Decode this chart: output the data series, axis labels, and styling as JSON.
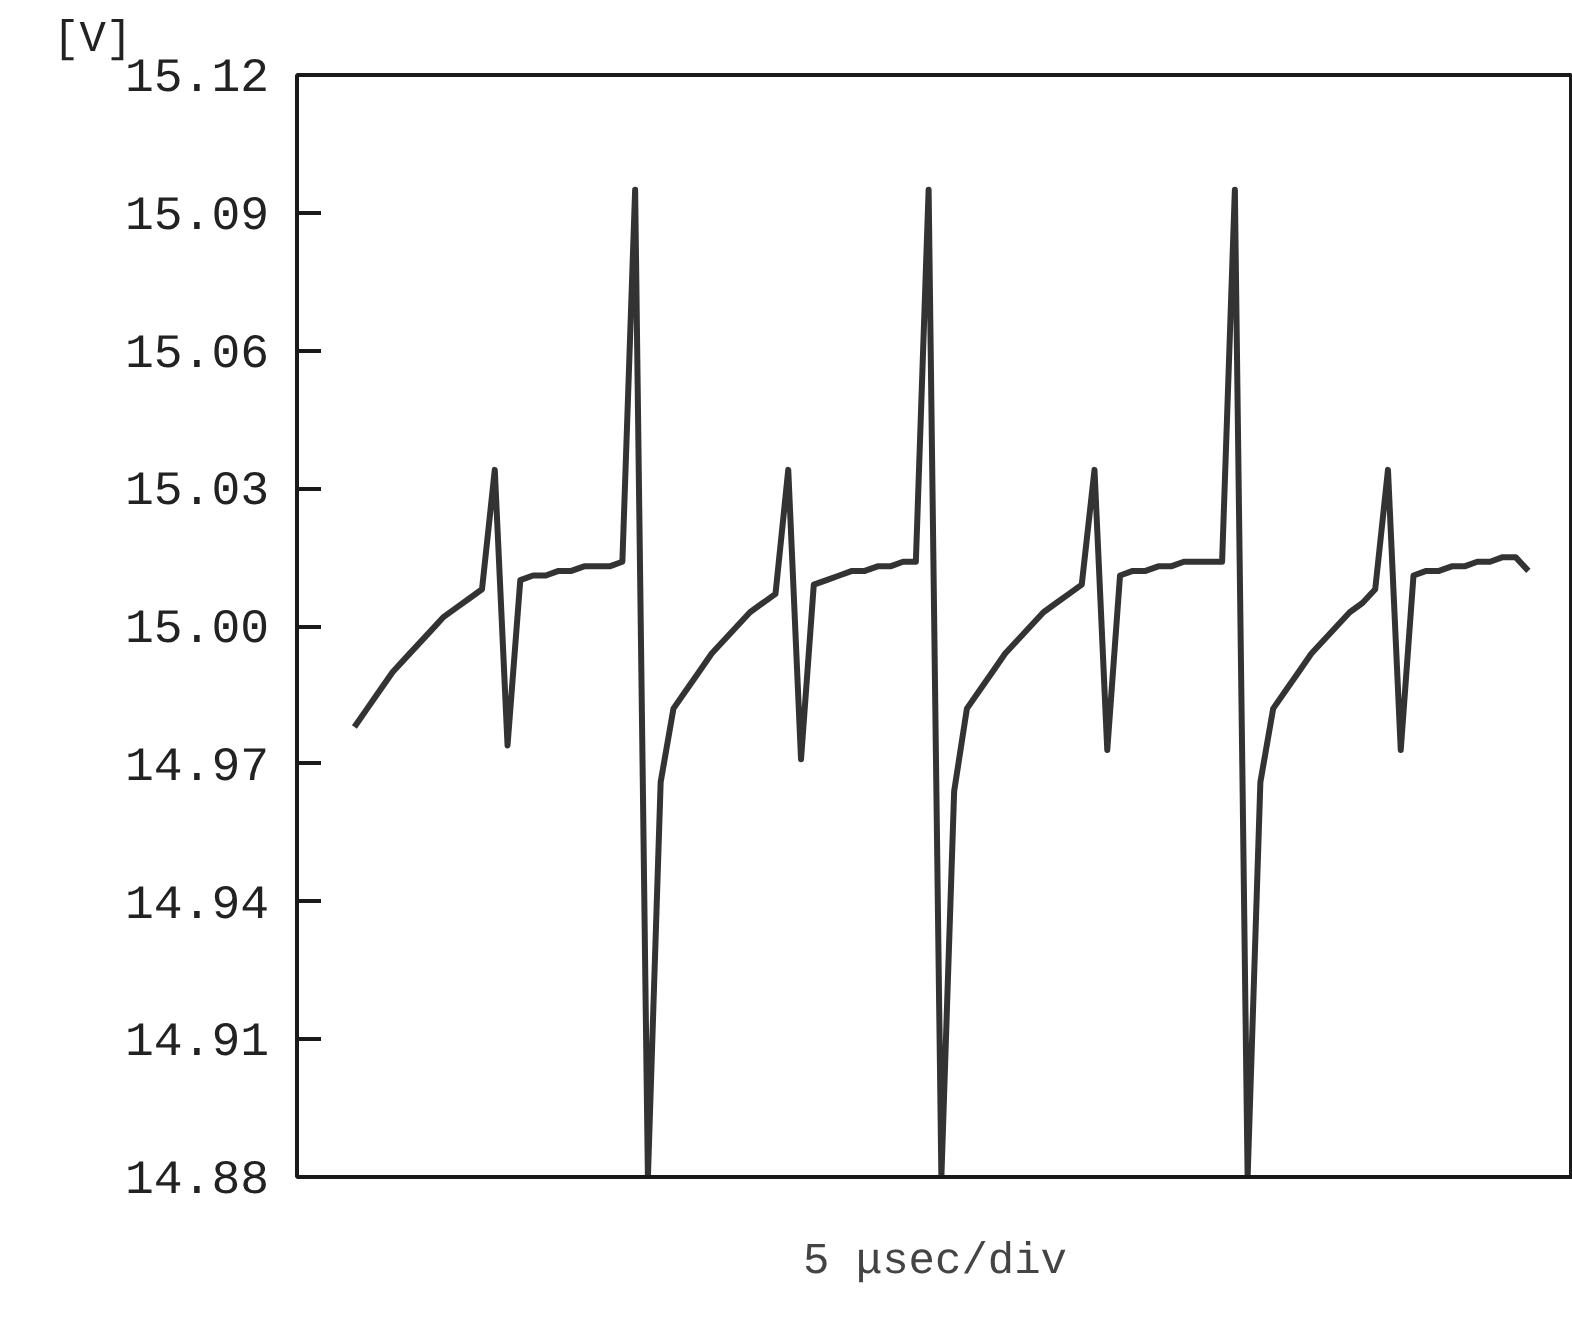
{
  "chart_data": {
    "type": "line",
    "ylabel": "[V]",
    "xlabel": "5 μsec/div",
    "categories": [
      null,
      null,
      null,
      null,
      null,
      null,
      null,
      null,
      null,
      null,
      null,
      null,
      null,
      null,
      null,
      null,
      null,
      null,
      null,
      null,
      null,
      null,
      null,
      null,
      null,
      null,
      null,
      null,
      null,
      null,
      null,
      null,
      null,
      null,
      null,
      null,
      null,
      null,
      null,
      null,
      null,
      null,
      null,
      null,
      null,
      null,
      null,
      null,
      null,
      null,
      null,
      null,
      null,
      null,
      null,
      null,
      null,
      null,
      null,
      null,
      null,
      null,
      null,
      null,
      null,
      null,
      null,
      null,
      null,
      null,
      null,
      null,
      null,
      null,
      null,
      null,
      null,
      null,
      null,
      null,
      null,
      null,
      null,
      null,
      null,
      null,
      null,
      null,
      null,
      null,
      null,
      null,
      null,
      null,
      null,
      null,
      null,
      null,
      null,
      null
    ],
    "series": [
      {
        "color": "#333333",
        "values": [
          null,
          null,
          null,
          null,
          14.978,
          14.982,
          14.986,
          14.99,
          14.993,
          14.996,
          14.999,
          15.002,
          15.004,
          15.006,
          15.008,
          15.034,
          14.974,
          15.01,
          15.011,
          15.011,
          15.012,
          15.012,
          15.013,
          15.013,
          15.013,
          15.014,
          15.095,
          14.88,
          14.966,
          14.982,
          14.986,
          14.99,
          14.994,
          14.997,
          15.0,
          15.003,
          15.005,
          15.007,
          15.034,
          14.971,
          15.009,
          15.01,
          15.011,
          15.012,
          15.012,
          15.013,
          15.013,
          15.014,
          15.014,
          15.095,
          14.88,
          14.964,
          14.982,
          14.986,
          14.99,
          14.994,
          14.997,
          15.0,
          15.003,
          15.005,
          15.007,
          15.009,
          15.034,
          14.973,
          15.011,
          15.012,
          15.012,
          15.013,
          15.013,
          15.014,
          15.014,
          15.014,
          15.014,
          15.095,
          14.88,
          14.966,
          14.982,
          14.986,
          14.99,
          14.994,
          14.997,
          15.0,
          15.003,
          15.005,
          15.008,
          15.034,
          14.973,
          15.011,
          15.012,
          15.012,
          15.013,
          15.013,
          15.014,
          15.014,
          15.015,
          15.015,
          15.012,
          null,
          null,
          null
        ]
      }
    ],
    "ylim": [
      14.88,
      15.12
    ],
    "yticks": [
      14.88,
      14.91,
      14.94,
      14.97,
      {
        "value": 15.0,
        "label": "15.00"
      },
      15.03,
      15.06,
      15.09,
      15.12
    ],
    "tick_labels": "y",
    "grid": false,
    "marker": "none",
    "line_style": "solid"
  }
}
